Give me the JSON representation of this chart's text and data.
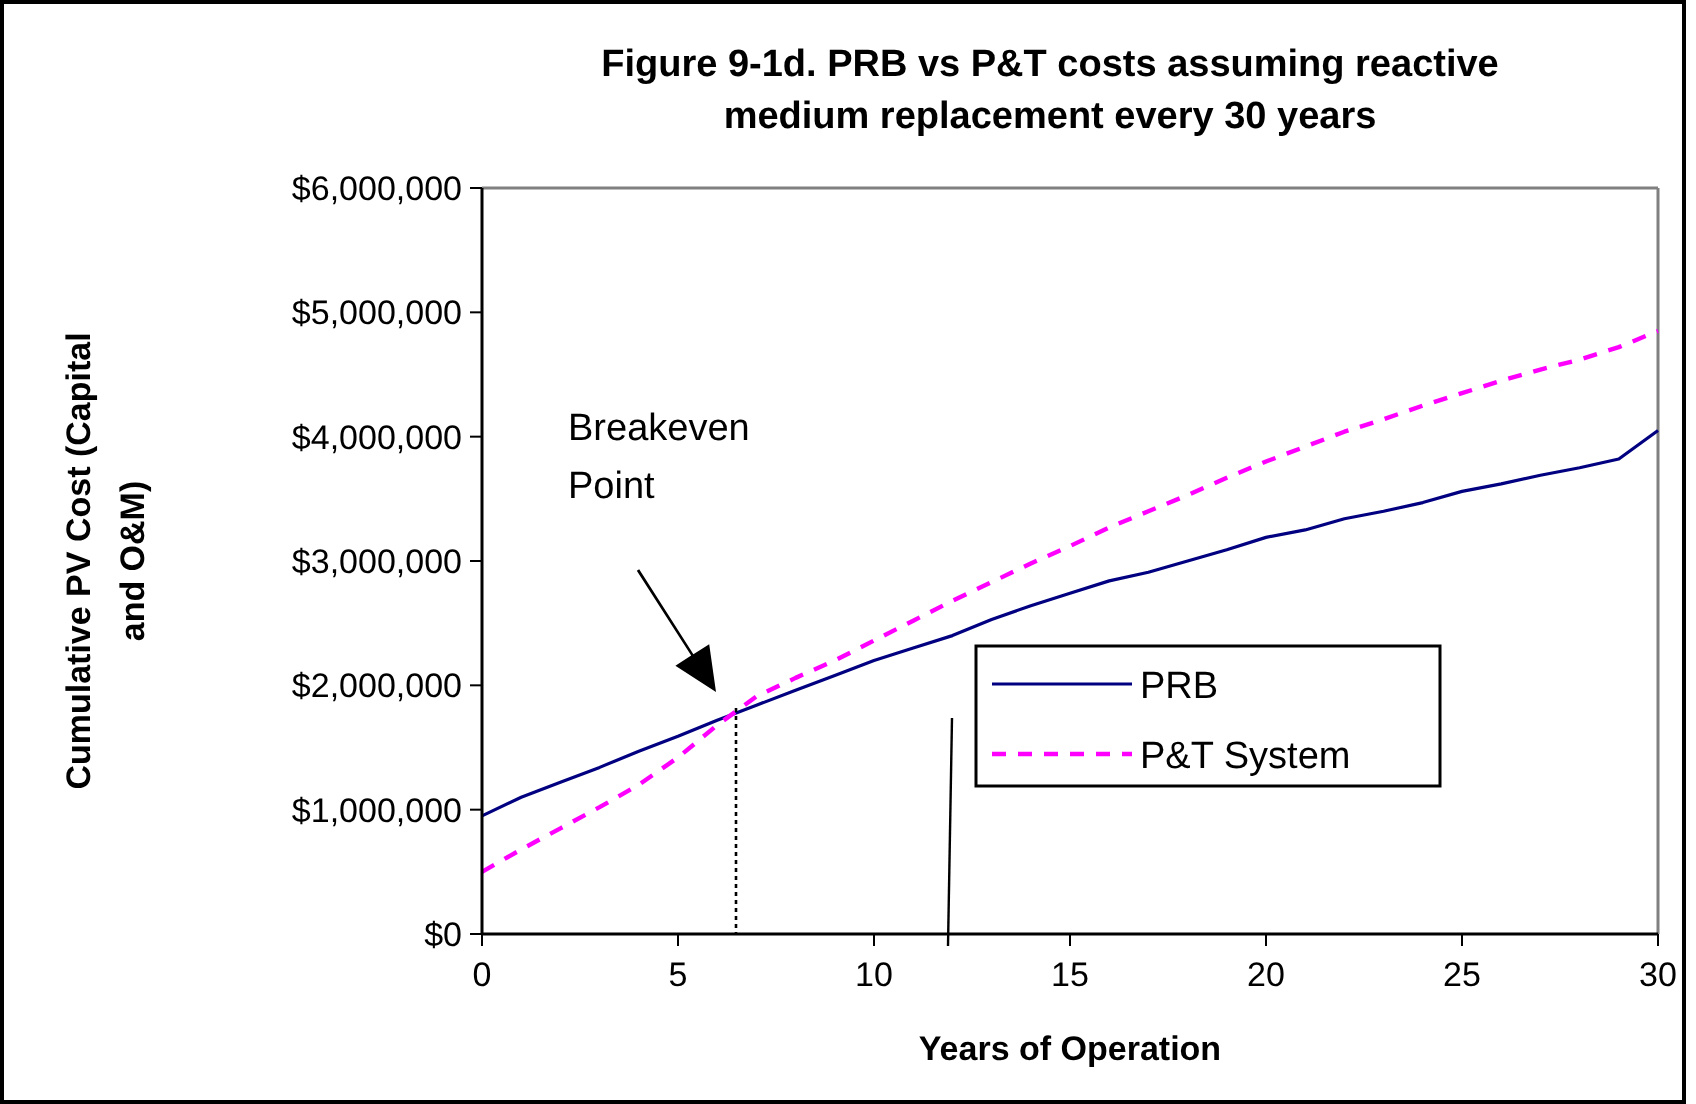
{
  "chart_data": {
    "type": "line",
    "title": "Figure 9-1d. PRB vs P&T costs assuming reactive medium replacement every 30 years",
    "xlabel": "Years of Operation",
    "ylabel": "Cumulative PV Cost (Capital and O&M)",
    "x": [
      0,
      1,
      2,
      3,
      4,
      5,
      6,
      7,
      8,
      9,
      10,
      11,
      12,
      13,
      14,
      15,
      16,
      17,
      18,
      19,
      20,
      21,
      22,
      23,
      24,
      25,
      26,
      27,
      28,
      29,
      30
    ],
    "series": [
      {
        "name": "PRB",
        "color": "#000080",
        "line_style": "solid",
        "values": [
          950000,
          1100000,
          1220000,
          1340000,
          1470000,
          1590000,
          1720000,
          1840000,
          1960000,
          2080000,
          2200000,
          2300000,
          2400000,
          2530000,
          2640000,
          2740000,
          2840000,
          2910000,
          3000000,
          3090000,
          3190000,
          3250000,
          3340000,
          3400000,
          3470000,
          3560000,
          3620000,
          3690000,
          3750000,
          3820000,
          4050000
        ]
      },
      {
        "name": "P&T System",
        "color": "#ff00ff",
        "line_style": "dashed",
        "values": [
          500000,
          680000,
          850000,
          1020000,
          1200000,
          1420000,
          1680000,
          1910000,
          2060000,
          2200000,
          2360000,
          2520000,
          2680000,
          2830000,
          2980000,
          3120000,
          3270000,
          3400000,
          3530000,
          3670000,
          3800000,
          3920000,
          4040000,
          4140000,
          4250000,
          4350000,
          4450000,
          4540000,
          4620000,
          4720000,
          4850000
        ]
      }
    ],
    "annotations": [
      "Breakeven Point"
    ],
    "xlim": [
      0,
      30
    ],
    "xticks": [
      0,
      5,
      10,
      15,
      20,
      25,
      30
    ],
    "ylim": [
      0,
      6000000
    ],
    "yticks": [
      {
        "value": 0,
        "label": "$0"
      },
      {
        "value": 1000000,
        "label": "$1,000,000"
      },
      {
        "value": 2000000,
        "label": "$2,000,000"
      },
      {
        "value": 3000000,
        "label": "$3,000,000"
      },
      {
        "value": 4000000,
        "label": "$4,000,000"
      },
      {
        "value": 5000000,
        "label": "$5,000,000"
      },
      {
        "value": 6000000,
        "label": "$6,000,000"
      }
    ],
    "grid": false,
    "legend": "right",
    "marker": "none"
  }
}
